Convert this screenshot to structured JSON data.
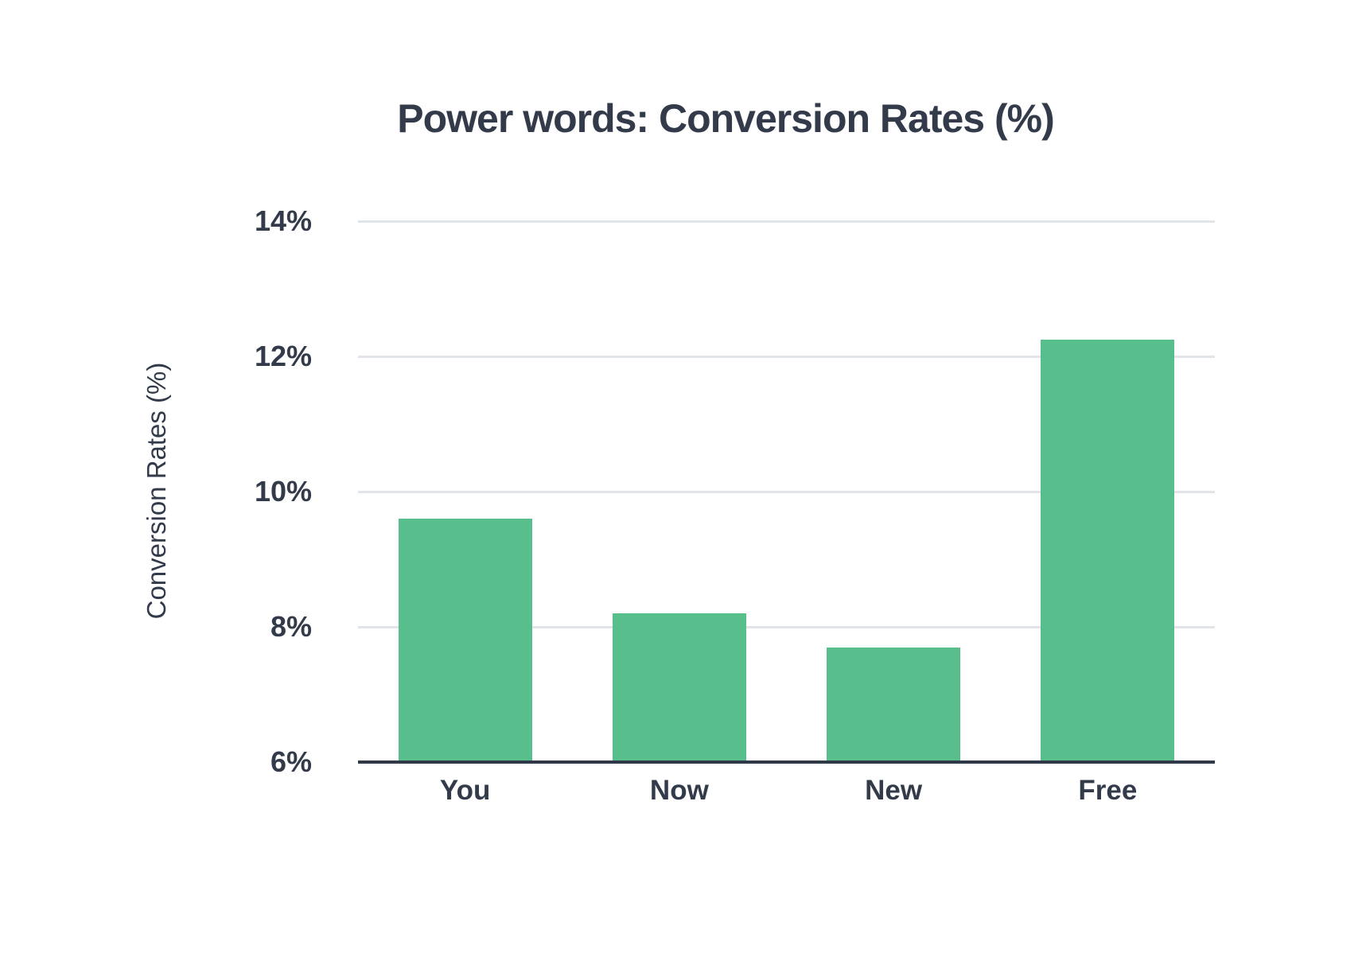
{
  "colors": {
    "background": "#ffffff",
    "bar": "#57be8c",
    "text": "#333b4a",
    "gridline": "#e1e4e9",
    "axis": "#303947"
  },
  "chart_data": {
    "type": "bar",
    "title": "Power words: Conversion Rates (%)",
    "ylabel": "Conversion Rates (%)",
    "xlabel": "",
    "categories": [
      "You",
      "Now",
      "New",
      "Free"
    ],
    "values": [
      9.6,
      8.2,
      7.7,
      12.25
    ],
    "ylim": [
      6,
      14
    ],
    "yticks": [
      6,
      8,
      10,
      12,
      14
    ],
    "ytick_labels": [
      "6%",
      "8%",
      "10%",
      "12%",
      "14%"
    ],
    "grid": true,
    "legend": false
  }
}
